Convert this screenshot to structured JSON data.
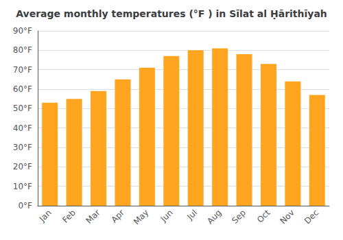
{
  "chart_data": {
    "type": "bar",
    "title": "Average monthly temperatures (°F ) in Sīlat al Ḥārithīyah",
    "categories": [
      "Jan",
      "Feb",
      "Mar",
      "Apr",
      "May",
      "Jun",
      "Jul",
      "Aug",
      "Sep",
      "Oct",
      "Nov",
      "Dec"
    ],
    "values": [
      53,
      55,
      59,
      65,
      71,
      77,
      80,
      81,
      78,
      73,
      64,
      57
    ],
    "color": "#FFA520",
    "ylim": [
      0,
      90
    ],
    "yticks": [
      {
        "value": 0,
        "label": "0°F"
      },
      {
        "value": 10,
        "label": "10°F"
      },
      {
        "value": 20,
        "label": "20°F"
      },
      {
        "value": 30,
        "label": "30°F"
      },
      {
        "value": 40,
        "label": "40°F"
      },
      {
        "value": 50,
        "label": "50°F"
      },
      {
        "value": 60,
        "label": "60°F"
      },
      {
        "value": 70,
        "label": "70°F"
      },
      {
        "value": 80,
        "label": "80°F"
      },
      {
        "value": 90,
        "label": "90°F"
      }
    ],
    "grid": true
  }
}
